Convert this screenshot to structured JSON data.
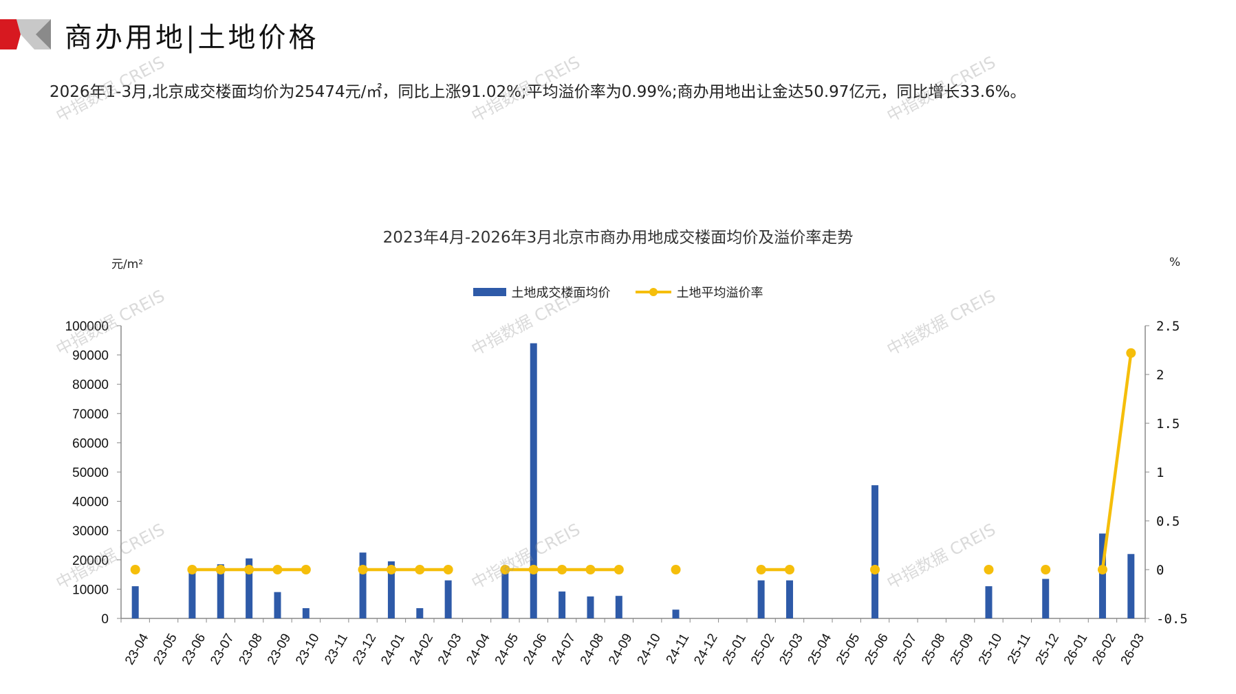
{
  "header": {
    "title": "商办用地|土地价格"
  },
  "summary": "2026年1-3月,北京成交楼面均价为25474元/㎡，同比上涨91.02%;平均溢价率为0.99%;商办用地出让金达50.97亿元，同比增长33.6%。",
  "watermark": "中指数据 CREIS",
  "chart_data": {
    "type": "bar+line",
    "title": "2023年4月-2026年3月北京市商办用地成交楼面均价及溢价率走势",
    "y_left_unit": "元/m²",
    "y_right_unit": "%",
    "y_left_lim": [
      0,
      100000
    ],
    "y_left_ticks": [
      "0",
      "10000",
      "20000",
      "30000",
      "40000",
      "50000",
      "60000",
      "70000",
      "80000",
      "90000",
      "100000"
    ],
    "y_right_lim": [
      -0.5,
      2.5
    ],
    "y_right_ticks": [
      "-0.5",
      "0",
      "0.5",
      "1",
      "1.5",
      "2",
      "2.5"
    ],
    "legend_position": "top",
    "grid": false,
    "categories": [
      "23-04",
      "23-05",
      "23-06",
      "23-07",
      "23-08",
      "23-09",
      "23-10",
      "23-11",
      "23-12",
      "24-01",
      "24-02",
      "24-03",
      "24-04",
      "24-05",
      "24-06",
      "24-07",
      "24-08",
      "24-09",
      "24-10",
      "24-11",
      "24-12",
      "25-01",
      "25-02",
      "25-03",
      "25-04",
      "25-05",
      "25-06",
      "25-07",
      "25-08",
      "25-09",
      "25-10",
      "25-11",
      "25-12",
      "26-01",
      "26-02",
      "26-03"
    ],
    "series": [
      {
        "name": "土地成交楼面均价",
        "type": "bar",
        "color": "#2E5AA8",
        "axis": "left",
        "values": [
          11000,
          0,
          17000,
          18500,
          20500,
          9000,
          3500,
          0,
          22500,
          19500,
          3500,
          13000,
          0,
          17000,
          94000,
          9200,
          7500,
          7700,
          0,
          3000,
          0,
          0,
          13000,
          13000,
          0,
          0,
          45500,
          0,
          0,
          0,
          11000,
          0,
          13500,
          0,
          29000,
          22000
        ]
      },
      {
        "name": "土地平均溢价率",
        "type": "line",
        "color": "#F5BE0B",
        "axis": "right",
        "values": [
          0,
          null,
          0,
          0,
          0,
          0,
          0,
          null,
          0,
          0,
          0,
          0,
          null,
          0,
          0,
          0,
          0,
          0,
          null,
          0,
          null,
          null,
          0,
          0,
          null,
          null,
          0,
          null,
          null,
          null,
          0,
          null,
          0,
          null,
          0,
          2.22
        ]
      }
    ]
  }
}
